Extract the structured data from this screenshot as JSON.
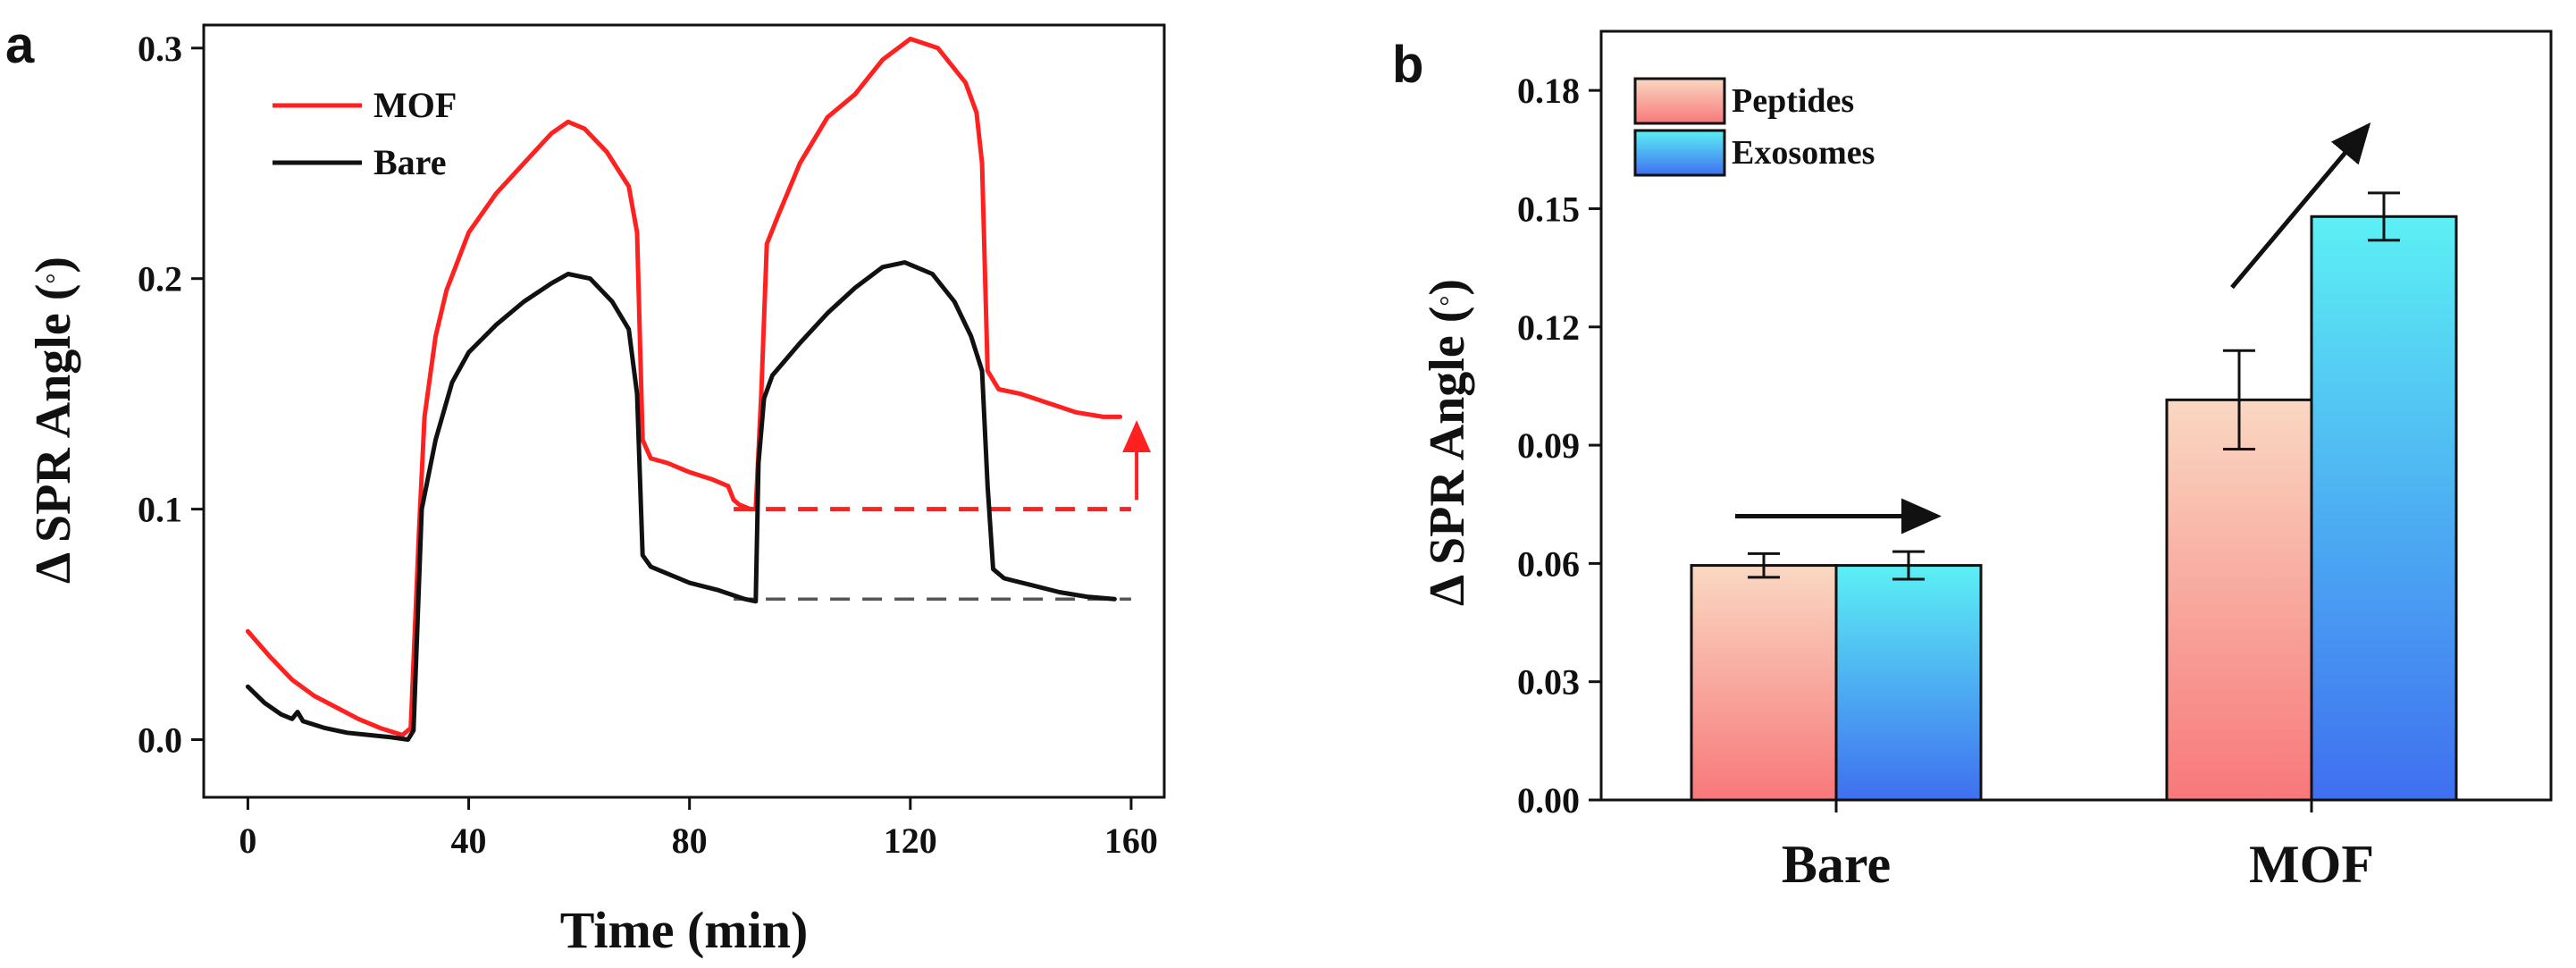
{
  "colors": {
    "mof_line": "#ff2020",
    "bare_line": "#111111",
    "axis": "#111111",
    "peptides_top": "#f9d8c2",
    "peptides_bottom": "#f8787a",
    "exosomes_top": "#5cf0f4",
    "exosomes_bottom": "#3f6ff0"
  },
  "chart_data": [
    {
      "panel_label": "a",
      "type": "line",
      "title": "",
      "xlabel": "Time (min)",
      "ylabel": "Δ SPR Angle (°)",
      "ylabel_prefix": "Δ SPR Angle (",
      "ylabel_suffix": ")",
      "degree_symbol": "°",
      "xlim": [
        -8,
        166
      ],
      "ylim": [
        -0.025,
        0.31
      ],
      "xticks": [
        0,
        40,
        80,
        120,
        160
      ],
      "xtick_labels": [
        "0",
        "40",
        "80",
        "120",
        "160"
      ],
      "yticks": [
        0.0,
        0.1,
        0.2,
        0.3
      ],
      "ytick_labels": [
        "0.0",
        "0.1",
        "0.2",
        "0.3"
      ],
      "legend": [
        "MOF",
        "Bare"
      ],
      "legend_position": "top-left",
      "series": [
        {
          "name": "MOF",
          "color": "#ff2020",
          "x": [
            0,
            4,
            8,
            12,
            16,
            20,
            24,
            28,
            29.5,
            31,
            32,
            34,
            36,
            40,
            45,
            50,
            55,
            58,
            61,
            65,
            69,
            70.5,
            71.5,
            73,
            76,
            80,
            84,
            87,
            88,
            89,
            91,
            92,
            93,
            94,
            96,
            100,
            105,
            110,
            115,
            120,
            125,
            130,
            132,
            133,
            134,
            136,
            140,
            145,
            150,
            155,
            158
          ],
          "y": [
            0.047,
            0.036,
            0.026,
            0.019,
            0.014,
            0.009,
            0.005,
            0.002,
            0.005,
            0.09,
            0.14,
            0.175,
            0.195,
            0.22,
            0.237,
            0.25,
            0.263,
            0.268,
            0.265,
            0.255,
            0.24,
            0.22,
            0.13,
            0.122,
            0.12,
            0.116,
            0.113,
            0.11,
            0.104,
            0.102,
            0.1,
            0.1,
            0.15,
            0.215,
            0.227,
            0.25,
            0.27,
            0.28,
            0.295,
            0.304,
            0.3,
            0.285,
            0.272,
            0.25,
            0.16,
            0.152,
            0.15,
            0.146,
            0.142,
            0.14,
            0.14
          ]
        },
        {
          "name": "Bare",
          "color": "#111111",
          "x": [
            0,
            3,
            6,
            8,
            9,
            10,
            14,
            18,
            22,
            26,
            29,
            30,
            31.5,
            34,
            37,
            40,
            45,
            50,
            55,
            58,
            62,
            66,
            69,
            70.5,
            71.5,
            73,
            76,
            80,
            85,
            90,
            92,
            92.5,
            93.5,
            95,
            100,
            105,
            110,
            115,
            119,
            124,
            128,
            131,
            133,
            134,
            135,
            137,
            142,
            147,
            152,
            157
          ],
          "y": [
            0.023,
            0.016,
            0.011,
            0.009,
            0.012,
            0.008,
            0.005,
            0.003,
            0.002,
            0.001,
            0.0,
            0.004,
            0.1,
            0.13,
            0.155,
            0.168,
            0.18,
            0.19,
            0.198,
            0.202,
            0.2,
            0.19,
            0.178,
            0.15,
            0.08,
            0.075,
            0.072,
            0.068,
            0.065,
            0.061,
            0.06,
            0.12,
            0.148,
            0.158,
            0.172,
            0.185,
            0.196,
            0.205,
            0.207,
            0.202,
            0.19,
            0.175,
            0.16,
            0.11,
            0.074,
            0.07,
            0.067,
            0.064,
            0.062,
            0.061
          ]
        }
      ],
      "annotations": [
        {
          "type": "dashed_hline",
          "color": "#ff2020",
          "y": 0.1,
          "x_from": 88,
          "x_to": 160
        },
        {
          "type": "dashed_hline",
          "color": "#555555",
          "y": 0.061,
          "x_from": 88,
          "x_to": 160
        },
        {
          "type": "arrow_up",
          "color": "#ff2020",
          "x": 161,
          "y_from": 0.104,
          "y_to": 0.137
        }
      ]
    },
    {
      "panel_label": "b",
      "type": "bar",
      "title": "",
      "xlabel": "",
      "ylabel": "Δ SPR Angle (°)",
      "ylabel_prefix": "Δ SPR Angle (",
      "ylabel_suffix": ")",
      "degree_symbol": "°",
      "ylim": [
        0.0,
        0.195
      ],
      "yticks": [
        0.0,
        0.03,
        0.06,
        0.09,
        0.12,
        0.15,
        0.18
      ],
      "ytick_labels": [
        "0.00",
        "0.03",
        "0.06",
        "0.09",
        "0.12",
        "0.15",
        "0.18"
      ],
      "categories": [
        "Bare",
        "MOF"
      ],
      "legend": [
        "Peptides",
        "Exosomes"
      ],
      "legend_position": "top-left",
      "series": [
        {
          "name": "Peptides",
          "values": [
            0.0595,
            0.1015
          ],
          "errors": [
            0.003,
            0.0125
          ]
        },
        {
          "name": "Exosomes",
          "values": [
            0.0595,
            0.148
          ],
          "errors": [
            0.0035,
            0.006
          ]
        }
      ],
      "annotations": [
        {
          "type": "arrow",
          "category": "Bare",
          "direction": "right",
          "y": 0.072
        },
        {
          "type": "arrow",
          "category": "MOF",
          "direction": "up-right",
          "y_from": 0.13,
          "y_to": 0.171
        }
      ]
    }
  ]
}
